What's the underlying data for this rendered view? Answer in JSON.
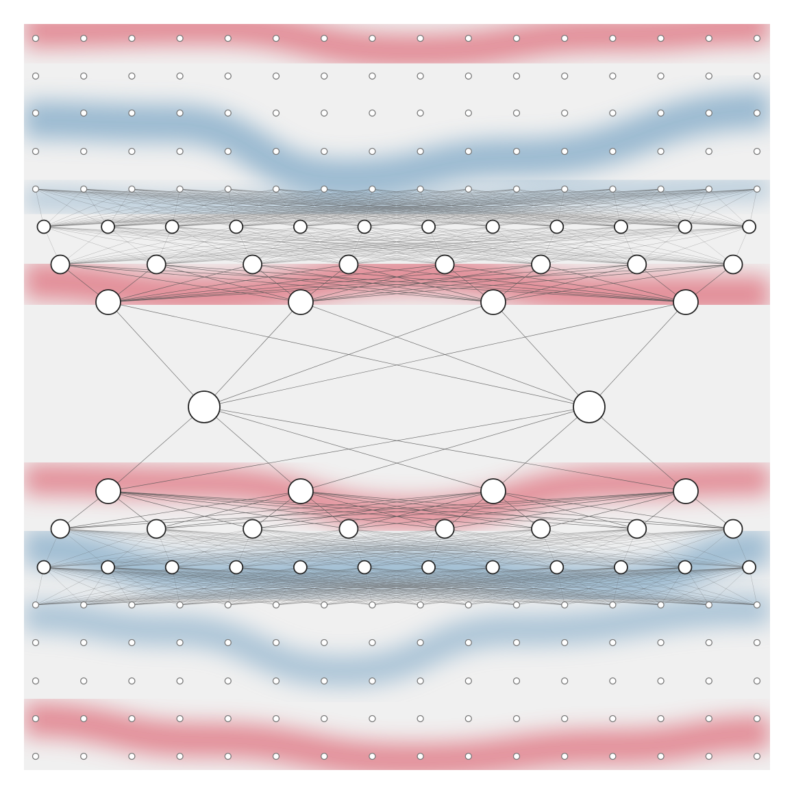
{
  "diagram": {
    "kind": "autoencoder-network-over-heatmap",
    "colors": {
      "background": "#ffffff",
      "panel": "#f0f0f0",
      "positive": "#e07b87",
      "negative": "#7ea7c6",
      "node_fill": "#ffffff",
      "node_stroke": "#222222",
      "small_node_stroke": "#777777",
      "edge": "#555555"
    },
    "layers": [
      {
        "name": "input-grid-row-1",
        "nodes": 16,
        "size": "tiny"
      },
      {
        "name": "input-grid-row-2",
        "nodes": 16,
        "size": "tiny"
      },
      {
        "name": "input-grid-row-3",
        "nodes": 16,
        "size": "tiny"
      },
      {
        "name": "input-grid-row-4",
        "nodes": 16,
        "size": "tiny"
      },
      {
        "name": "input-layer",
        "nodes": 16,
        "size": "tiny"
      },
      {
        "name": "encoder-hidden-1",
        "nodes": 12,
        "size": "small"
      },
      {
        "name": "encoder-hidden-2",
        "nodes": 8,
        "size": "medium"
      },
      {
        "name": "encoder-hidden-3",
        "nodes": 4,
        "size": "large"
      },
      {
        "name": "latent",
        "nodes": 2,
        "size": "xlarge"
      },
      {
        "name": "decoder-hidden-1",
        "nodes": 4,
        "size": "large"
      },
      {
        "name": "decoder-hidden-2",
        "nodes": 8,
        "size": "medium"
      },
      {
        "name": "decoder-hidden-3",
        "nodes": 12,
        "size": "small"
      },
      {
        "name": "output-layer",
        "nodes": 16,
        "size": "tiny"
      },
      {
        "name": "output-grid-row-1",
        "nodes": 16,
        "size": "tiny"
      },
      {
        "name": "output-grid-row-2",
        "nodes": 16,
        "size": "tiny"
      },
      {
        "name": "output-grid-row-3",
        "nodes": 16,
        "size": "tiny"
      },
      {
        "name": "output-grid-row-4",
        "nodes": 16,
        "size": "tiny"
      }
    ],
    "connections": [
      [
        "input-layer",
        "encoder-hidden-1"
      ],
      [
        "encoder-hidden-1",
        "encoder-hidden-2"
      ],
      [
        "encoder-hidden-2",
        "encoder-hidden-3"
      ],
      [
        "encoder-hidden-3",
        "latent"
      ],
      [
        "latent",
        "decoder-hidden-1"
      ],
      [
        "decoder-hidden-1",
        "decoder-hidden-2"
      ],
      [
        "decoder-hidden-2",
        "decoder-hidden-3"
      ],
      [
        "decoder-hidden-3",
        "output-layer"
      ]
    ]
  }
}
